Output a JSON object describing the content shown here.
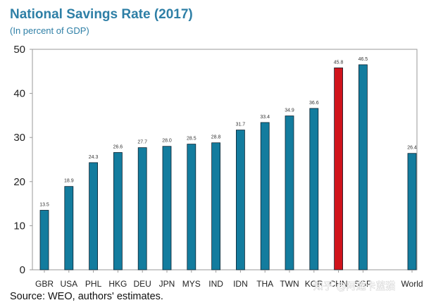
{
  "chart_data": {
    "type": "bar",
    "title": "National Savings Rate (2017)",
    "subtitle": "(In percent of GDP)",
    "xlabel": "",
    "ylabel": "",
    "ylim": [
      0,
      50
    ],
    "yticks": [
      0,
      10,
      20,
      30,
      40,
      50
    ],
    "categories": [
      "GBR",
      "USA",
      "PHL",
      "HKG",
      "DEU",
      "JPN",
      "MYS",
      "IND",
      "IDN",
      "THA",
      "TWN",
      "KOR",
      "CHN",
      "SGP",
      "World"
    ],
    "values": [
      13.5,
      18.9,
      24.3,
      26.6,
      27.7,
      28.0,
      28.5,
      28.8,
      31.7,
      33.4,
      34.9,
      36.6,
      45.8,
      46.5,
      26.4
    ],
    "value_labels": [
      "13.5",
      "18.9",
      "24.3",
      "26.6",
      "27.7",
      "28.0",
      "28.5",
      "28.8",
      "31.7",
      "33.4",
      "34.9",
      "36.6",
      "45.8",
      "46.5",
      "26.4"
    ],
    "highlight_category": "CHN",
    "grid": false,
    "legend": "none",
    "source": "Source: WEO, authors' estimates.",
    "watermark": "知乎 @阿莲卡蓝猫"
  },
  "colors": {
    "title": "#2E7FA6",
    "subtitle": "#2E7FA6",
    "bar": "#137C9E",
    "bar_highlight": "#D0141C",
    "bar_edge": "#0c2230",
    "axis": "#999999"
  }
}
